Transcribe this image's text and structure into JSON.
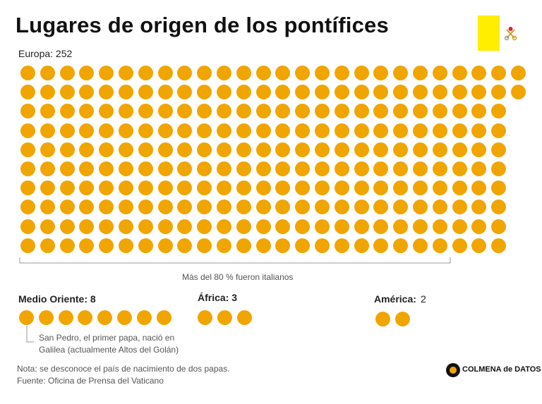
{
  "title": "Lugares de origen de los pontífices",
  "colors": {
    "dot": "#F0A500",
    "flag_yellow": "#FFEE00",
    "accent": "#F0A500"
  },
  "icons": {
    "flag": "vatican-flag-icon",
    "logo": "colmena-logo-icon"
  },
  "chart_data": {
    "type": "waffle",
    "unit": "papa",
    "series": [
      {
        "name": "Europa",
        "value": 252,
        "label": "Europa: 252"
      },
      {
        "name": "Medio Oriente",
        "value": 8,
        "label": "Medio Oriente: 8"
      },
      {
        "name": "África",
        "value": 3,
        "label": "África: 3"
      },
      {
        "name": "América",
        "value": 2,
        "label": "América:",
        "value_text": "2"
      }
    ],
    "annotations": {
      "italians": "Más del 80 % fueron italianos",
      "san_pedro_line1": "San Pedro, el primer papa, nació en",
      "san_pedro_line2": "Galilea (actualmente Altos del Golán)"
    }
  },
  "footer": {
    "note": "Nota: se desconoce el país de nacimiento de dos papas.",
    "source": "Fuente: Oficina de Prensa del Vaticano",
    "logo_text": "COLMENA de DATOS"
  }
}
